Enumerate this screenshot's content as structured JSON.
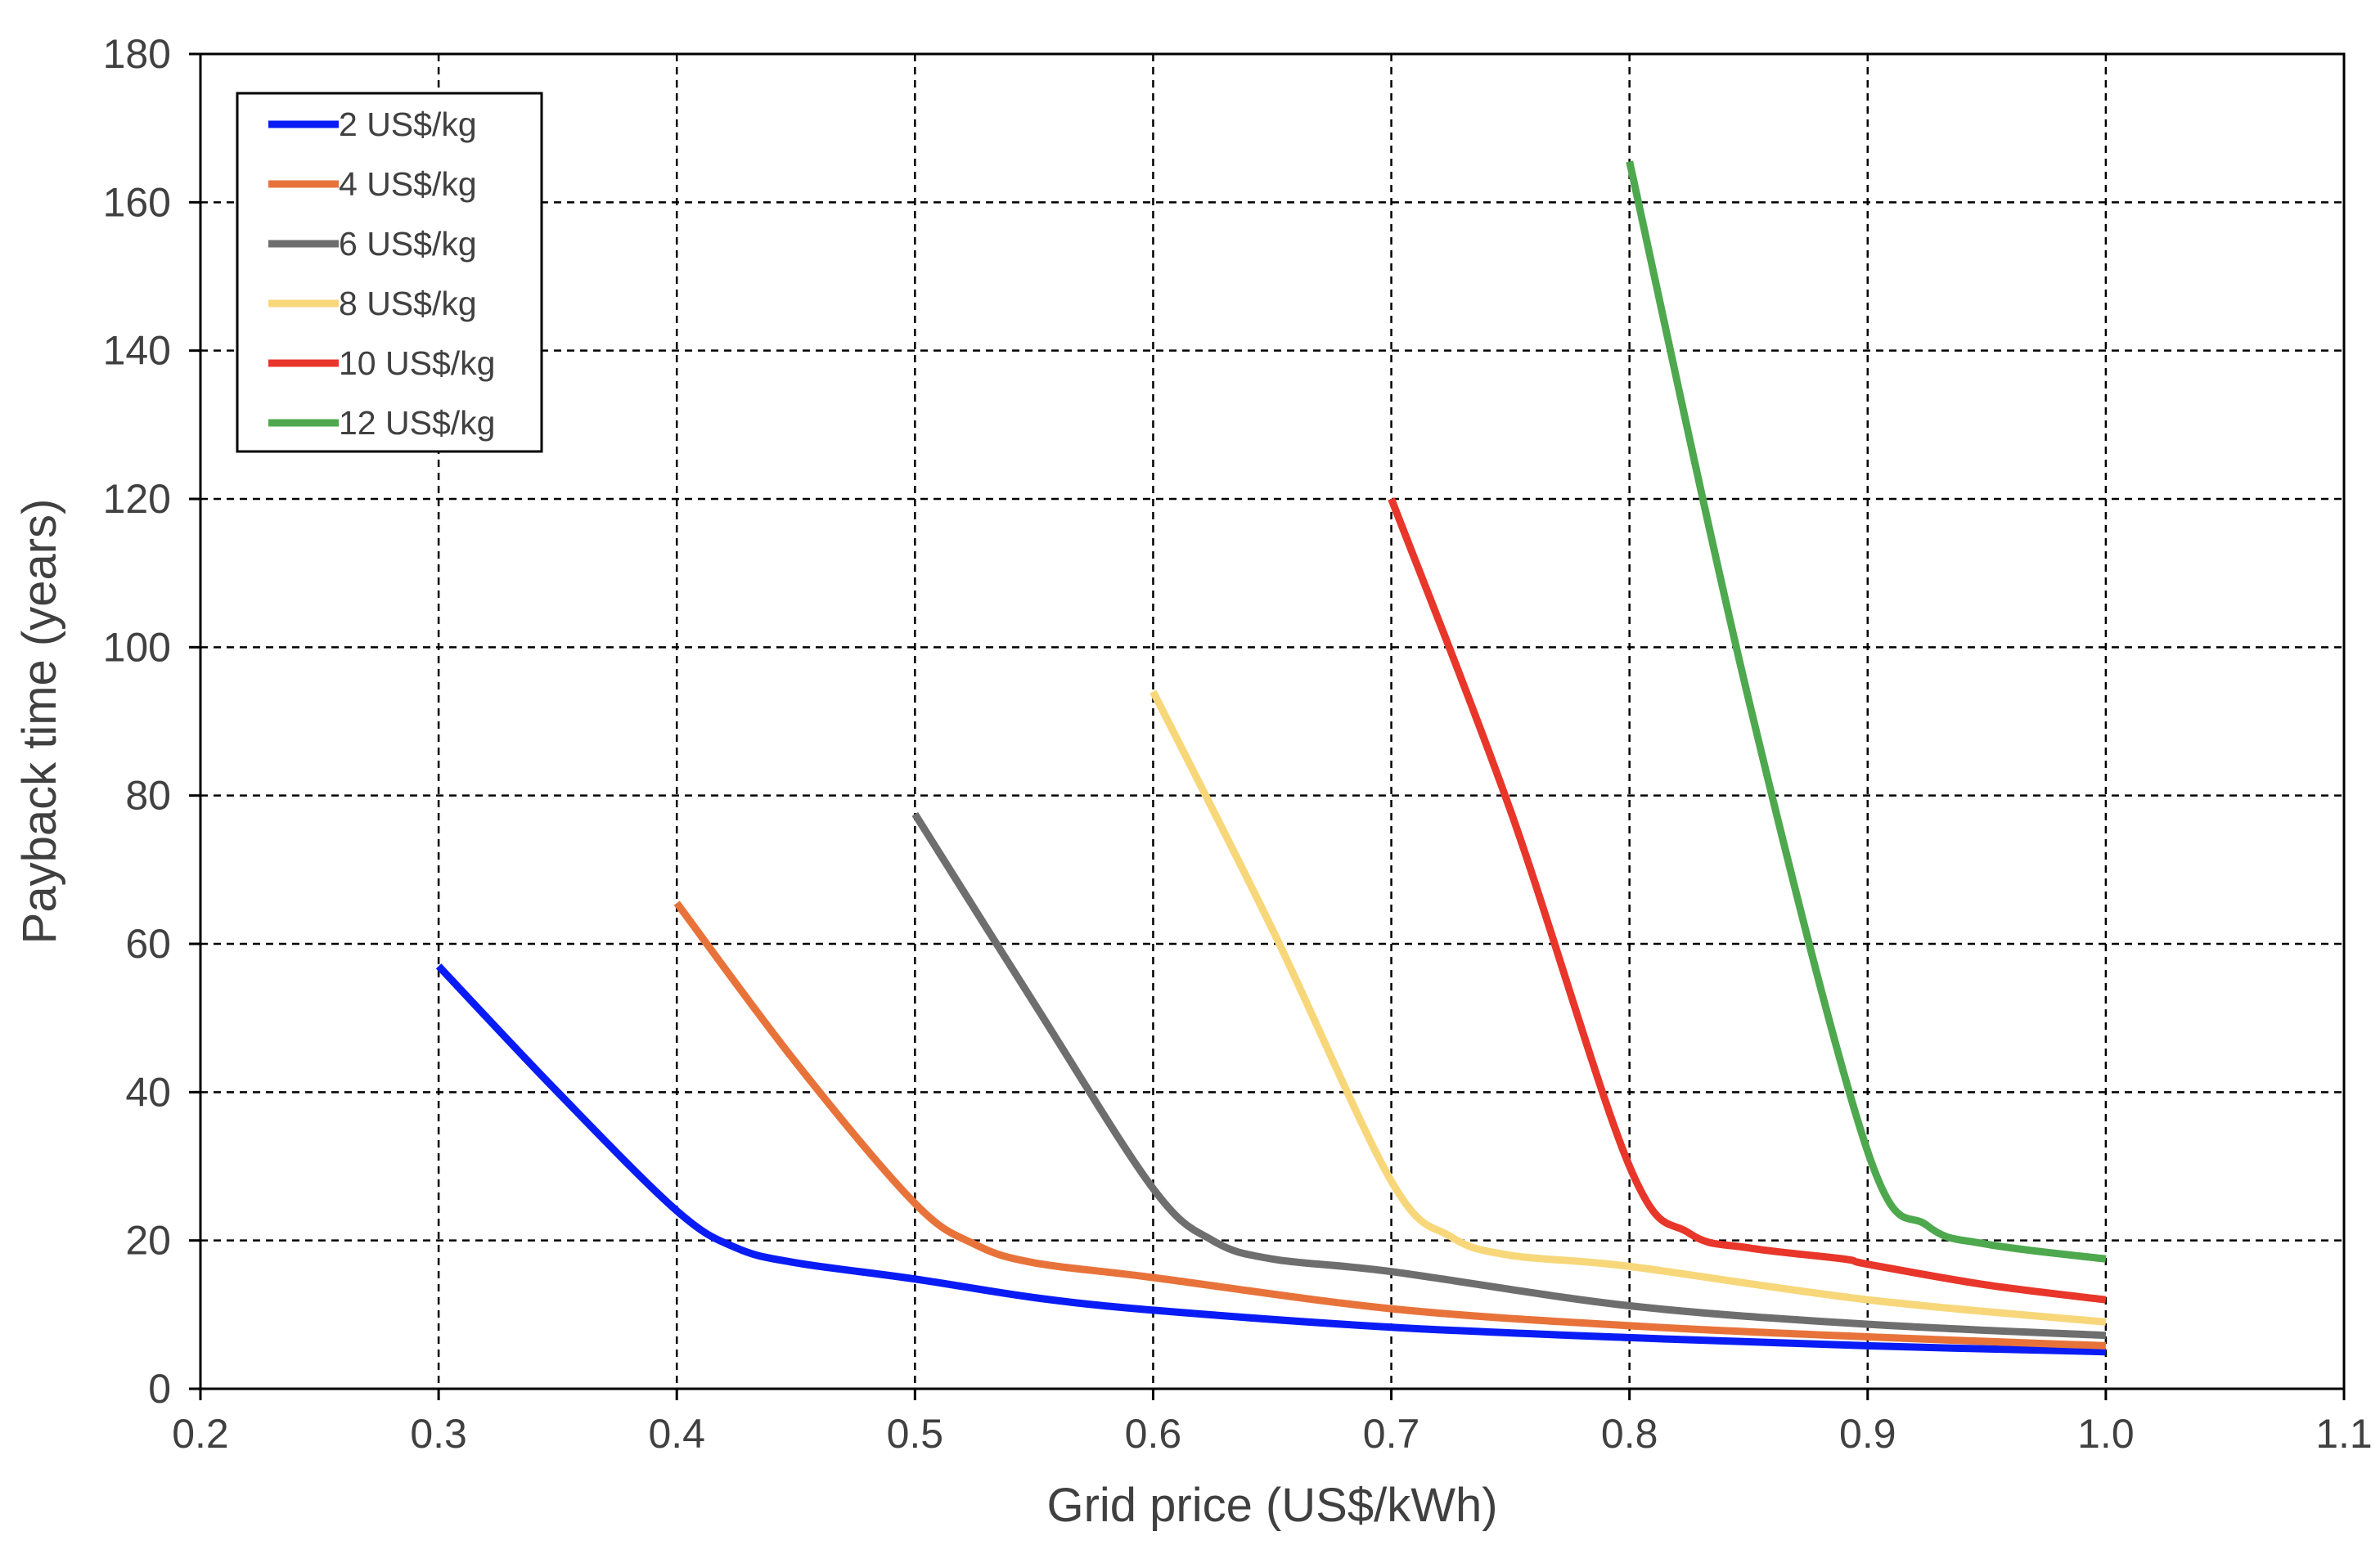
{
  "chart_data": {
    "type": "line",
    "title": "",
    "xlabel": "Grid price (US$/kWh)",
    "ylabel": "Payback time (years)",
    "xlim": [
      0.2,
      1.1
    ],
    "ylim": [
      0,
      180
    ],
    "xticks": [
      0.2,
      0.3,
      0.4,
      0.5,
      0.6,
      0.7,
      0.8,
      0.9,
      1.0,
      1.1
    ],
    "xtick_labels": [
      "0.2",
      "0.3",
      "0.4",
      "0.5",
      "0.6",
      "0.7",
      "0.8",
      "0.9",
      "1.0",
      "1.1"
    ],
    "yticks": [
      0,
      20,
      40,
      60,
      80,
      100,
      120,
      140,
      160,
      180
    ],
    "ytick_labels": [
      "0",
      "20",
      "40",
      "60",
      "80",
      "100",
      "120",
      "140",
      "160",
      "180"
    ],
    "grid": true,
    "grid_style": "dashed",
    "legend_position": "top-left",
    "series": [
      {
        "name": "2 US$/kg",
        "color": "#0A1CF5",
        "x": [
          0.3,
          0.35,
          0.4,
          0.425,
          0.45,
          0.5,
          0.55,
          0.6,
          0.7,
          0.8,
          0.9,
          1.0
        ],
        "y": [
          57,
          40,
          24,
          19,
          17,
          14.8,
          12.3,
          10.6,
          8.3,
          6.9,
          5.8,
          5
        ]
      },
      {
        "name": "4 US$/kg",
        "color": "#E8733A",
        "x": [
          0.4,
          0.45,
          0.5,
          0.525,
          0.55,
          0.6,
          0.7,
          0.8,
          0.9,
          1.0
        ],
        "y": [
          65.5,
          44,
          25,
          19.5,
          17,
          15,
          10.8,
          8.5,
          7,
          5.8
        ]
      },
      {
        "name": "6 US$/kg",
        "color": "#6E6E6E",
        "x": [
          0.5,
          0.55,
          0.6,
          0.625,
          0.65,
          0.7,
          0.8,
          0.9,
          1.0
        ],
        "y": [
          77.5,
          52,
          27,
          20,
          17.5,
          15.8,
          11.2,
          8.7,
          7.2
        ]
      },
      {
        "name": "8 US$/kg",
        "color": "#F7D779",
        "x": [
          0.6,
          0.65,
          0.7,
          0.725,
          0.75,
          0.8,
          0.9,
          1.0
        ],
        "y": [
          94,
          62,
          28,
          20.5,
          18,
          16.5,
          12,
          9
        ]
      },
      {
        "name": "10 US$/kg",
        "color": "#E8362A",
        "x": [
          0.7,
          0.75,
          0.8,
          0.825,
          0.85,
          0.89,
          0.9,
          0.95,
          1.0
        ],
        "y": [
          120,
          78,
          30,
          21,
          19,
          17.5,
          16.8,
          14,
          12
        ]
      },
      {
        "name": "12 US$/kg",
        "color": "#4EA84E",
        "x": [
          0.8,
          0.85,
          0.9,
          0.925,
          0.95,
          1.0
        ],
        "y": [
          165.5,
          93,
          32,
          22,
          19.5,
          17.5
        ]
      }
    ]
  }
}
